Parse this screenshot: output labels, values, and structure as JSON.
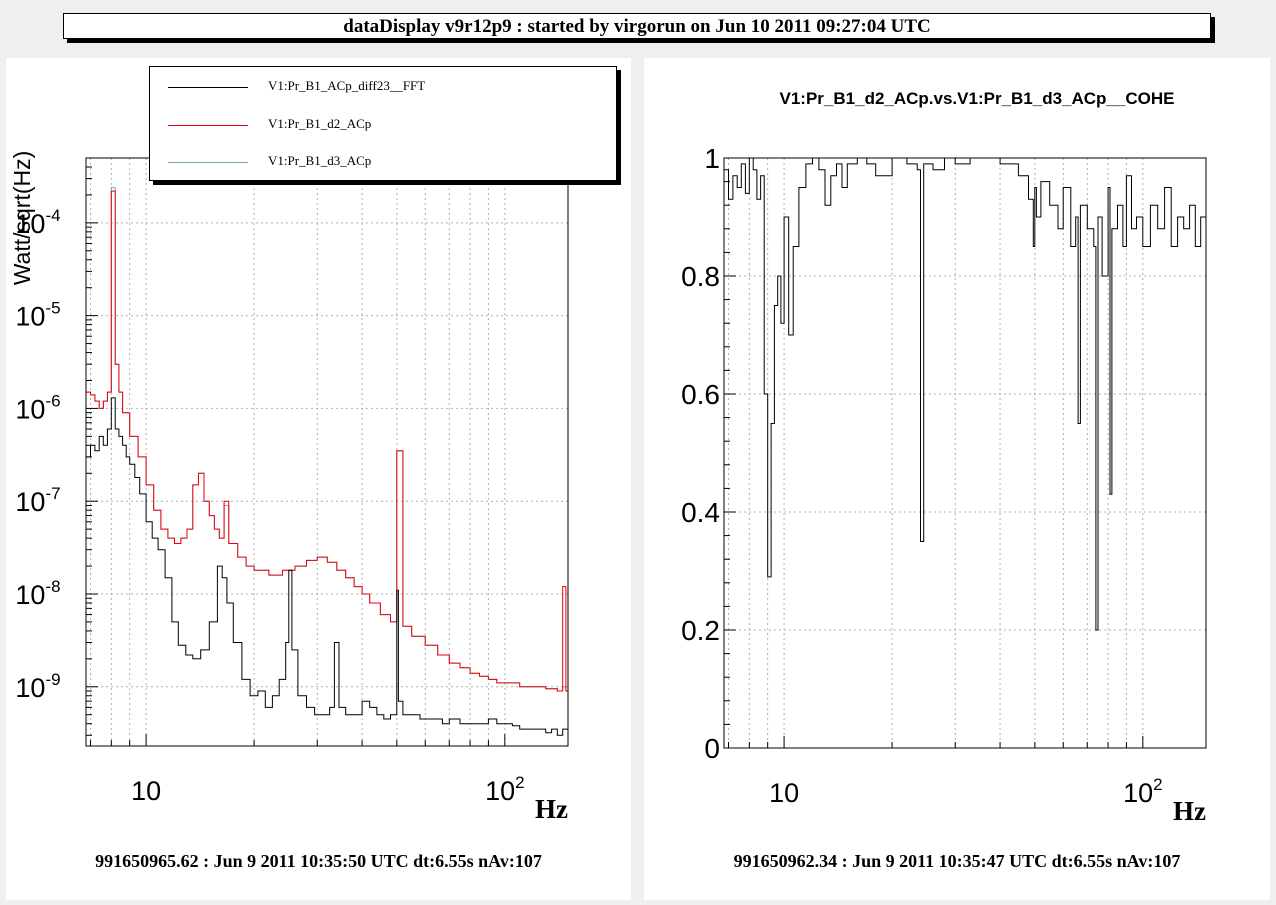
{
  "window_title": "dataDisplay v9r12p9 : started by virgorun on Jun 10 2011 09:27:04 UTC",
  "colors": {
    "fft": "#000000",
    "d2": "#e8000b",
    "d3": "#6db596",
    "grid": "#b0b0b0"
  },
  "left_panel": {
    "footer": "991650965.62 : Jun  9 2011 10:35:50 UTC dt:6.55s nAv:107",
    "chart_data": {
      "type": "line",
      "title": "",
      "xlabel": "Hz",
      "ylabel": "Watt/sqrt(Hz)",
      "xscale": "log",
      "yscale": "log",
      "xlim": [
        6.8,
        150
      ],
      "ylim": [
        2.3e-10,
        0.0005
      ],
      "grid": true,
      "legend_position": "top",
      "x_tick_labels": [
        {
          "value": 10,
          "base": "10",
          "exp": ""
        },
        {
          "value": 100,
          "base": "10",
          "exp": "2"
        }
      ],
      "y_tick_labels": [
        {
          "value": 1e-09,
          "base": "10",
          "exp": "-9"
        },
        {
          "value": 1e-08,
          "base": "10",
          "exp": "-8"
        },
        {
          "value": 1e-07,
          "base": "10",
          "exp": "-7"
        },
        {
          "value": 1e-06,
          "base": "10",
          "exp": "-6"
        },
        {
          "value": 1e-05,
          "base": "10",
          "exp": "-5"
        },
        {
          "value": 0.0001,
          "base": "10",
          "exp": "-4"
        }
      ],
      "series": [
        {
          "name": "V1:Pr_B1_ACp_diff23__FFT",
          "color": "#000000",
          "x": [
            6.8,
            7.0,
            7.2,
            7.4,
            7.6,
            7.8,
            8.0,
            8.2,
            8.4,
            8.6,
            8.8,
            9.0,
            9.3,
            9.6,
            10.0,
            10.4,
            10.8,
            11.3,
            11.8,
            12.3,
            12.9,
            13.5,
            14.2,
            15.0,
            15.8,
            16.3,
            16.8,
            17.5,
            18.5,
            19.5,
            20.5,
            21.5,
            22.5,
            23.5,
            24.5,
            25.0,
            25.5,
            26.5,
            28.0,
            29.5,
            31.0,
            32.5,
            33.5,
            34.5,
            36.0,
            38.0,
            40.0,
            42.0,
            44.0,
            46.0,
            48.0,
            49.5,
            50.0,
            50.5,
            52.0,
            55.0,
            58.0,
            61.0,
            64.0,
            67.0,
            70.0,
            75.0,
            80.0,
            85.0,
            90.0,
            95.0,
            100.0,
            105.0,
            110.0,
            115.0,
            120.0,
            125.0,
            130.0,
            135.0,
            140.0,
            145.0,
            150.0
          ],
          "y": [
            3e-07,
            4e-07,
            3.5e-07,
            5e-07,
            4e-07,
            6e-07,
            1.3e-06,
            6e-07,
            5e-07,
            4e-07,
            3e-07,
            2.5e-07,
            1.8e-07,
            1.2e-07,
            6e-08,
            4e-08,
            3e-08,
            1.5e-08,
            5e-09,
            2.8e-09,
            2.2e-09,
            2e-09,
            2.5e-09,
            5e-09,
            2e-08,
            1.5e-08,
            8e-09,
            3e-09,
            1.2e-09,
            8e-10,
            9e-10,
            6e-10,
            8e-10,
            1.2e-09,
            3e-09,
            1.8e-08,
            2.5e-09,
            8e-10,
            6e-10,
            5e-10,
            5e-10,
            6e-10,
            3e-09,
            6e-10,
            5e-10,
            5e-10,
            7e-10,
            6e-10,
            5e-10,
            4.5e-10,
            5e-10,
            5e-10,
            1.1e-08,
            7e-10,
            5e-10,
            5e-10,
            4.5e-10,
            4.5e-10,
            4.5e-10,
            4e-10,
            4.5e-10,
            4e-10,
            4e-10,
            4e-10,
            4.5e-10,
            4e-10,
            4e-10,
            3.8e-10,
            3.5e-10,
            3.5e-10,
            3.5e-10,
            3.5e-10,
            3.2e-10,
            3.5e-10,
            3e-10,
            3.5e-10,
            3.5e-10
          ]
        },
        {
          "name": "V1:Pr_B1_d2_ACp",
          "color": "#e8000b",
          "x": [
            6.8,
            7.0,
            7.2,
            7.4,
            7.6,
            7.8,
            8.0,
            8.2,
            8.4,
            8.6,
            9.0,
            9.5,
            10.0,
            10.5,
            11.0,
            11.5,
            12.0,
            12.5,
            13.0,
            13.5,
            14.0,
            14.5,
            15.0,
            15.5,
            16.0,
            16.5,
            17.0,
            18.0,
            19.0,
            20.0,
            22.0,
            24.0,
            26.0,
            28.0,
            30.0,
            32.0,
            34.0,
            36.0,
            38.0,
            40.0,
            42.0,
            45.0,
            48.0,
            50.0,
            52.0,
            55.0,
            60.0,
            65.0,
            70.0,
            75.0,
            80.0,
            85.0,
            90.0,
            95.0,
            100.0,
            110.0,
            120.0,
            130.0,
            140.0,
            145.0,
            148.0,
            150.0
          ],
          "y": [
            1.5e-06,
            1.4e-06,
            1.2e-06,
            1e-06,
            1.2e-06,
            1.5e-06,
            0.00022,
            3e-06,
            1.5e-06,
            9e-07,
            5e-07,
            3e-07,
            1.5e-07,
            8e-08,
            5e-08,
            4e-08,
            3.5e-08,
            4e-08,
            5e-08,
            1.5e-07,
            2e-07,
            1e-07,
            7e-08,
            5e-08,
            4e-08,
            1e-07,
            3.5e-08,
            2.5e-08,
            2e-08,
            1.8e-08,
            1.6e-08,
            1.8e-08,
            2e-08,
            2.3e-08,
            2.5e-08,
            2.2e-08,
            1.8e-08,
            1.5e-08,
            1.2e-08,
            1e-08,
            8e-09,
            6e-09,
            5e-09,
            3.5e-07,
            4.5e-09,
            3.5e-09,
            2.8e-09,
            2.2e-09,
            1.8e-09,
            1.6e-09,
            1.4e-09,
            1.3e-09,
            1.2e-09,
            1.1e-09,
            1.1e-09,
            1e-09,
            1e-09,
            9.5e-10,
            9e-10,
            1.2e-08,
            9e-10,
            8.5e-10
          ]
        },
        {
          "name": "V1:Pr_B1_d3_ACp",
          "color": "#6db596",
          "x": [
            6.8,
            7.0,
            7.2,
            7.4,
            7.6,
            7.8,
            8.0,
            8.2,
            8.4,
            8.6,
            9.0,
            9.5,
            10.0,
            10.5,
            11.0,
            11.5,
            12.0,
            12.5,
            13.0,
            13.5,
            14.0,
            14.5,
            15.0,
            15.5,
            16.0,
            16.5,
            17.0,
            18.0,
            19.0,
            20.0,
            22.0,
            24.0,
            26.0,
            28.0,
            30.0,
            32.0,
            34.0,
            36.0,
            38.0,
            40.0,
            42.0,
            45.0,
            48.0,
            50.0,
            52.0,
            55.0,
            60.0,
            65.0,
            70.0,
            75.0,
            80.0,
            85.0,
            90.0,
            95.0,
            100.0,
            110.0,
            120.0,
            130.0,
            140.0,
            145.0,
            148.0,
            150.0
          ],
          "y": [
            1.5e-06,
            1.4e-06,
            1.2e-06,
            1e-06,
            1.2e-06,
            1.5e-06,
            0.00024,
            3e-06,
            1.5e-06,
            9e-07,
            5e-07,
            3e-07,
            1.5e-07,
            8e-08,
            5e-08,
            4e-08,
            3.5e-08,
            4e-08,
            5e-08,
            1.5e-07,
            2e-07,
            1e-07,
            7e-08,
            5e-08,
            4e-08,
            9e-08,
            3.5e-08,
            2.5e-08,
            2e-08,
            1.8e-08,
            1.6e-08,
            1.8e-08,
            2e-08,
            2.3e-08,
            2.5e-08,
            2.2e-08,
            1.8e-08,
            1.5e-08,
            1.2e-08,
            1e-08,
            8e-09,
            6e-09,
            5e-09,
            3.5e-07,
            4.5e-09,
            3.5e-09,
            2.8e-09,
            2.2e-09,
            1.8e-09,
            1.6e-09,
            1.4e-09,
            1.3e-09,
            1.2e-09,
            1.1e-09,
            1.1e-09,
            1e-09,
            1e-09,
            9.5e-10,
            9e-10,
            1e-09,
            9e-10,
            8.5e-10
          ]
        }
      ]
    }
  },
  "right_panel": {
    "footer": "991650962.34 : Jun  9 2011 10:35:47 UTC dt:6.55s nAv:107",
    "chart_data": {
      "type": "line",
      "title": "V1:Pr_B1_d2_ACp.vs.V1:Pr_B1_d3_ACp__COHE",
      "xlabel": "Hz",
      "ylabel": "",
      "xscale": "log",
      "yscale": "linear",
      "xlim": [
        6.8,
        150
      ],
      "ylim": [
        0,
        1
      ],
      "grid": true,
      "x_tick_labels": [
        {
          "value": 10,
          "base": "10",
          "exp": ""
        },
        {
          "value": 100,
          "base": "10",
          "exp": "2"
        }
      ],
      "y_tick_labels": [
        {
          "value": 0,
          "label": "0"
        },
        {
          "value": 0.2,
          "label": "0.2"
        },
        {
          "value": 0.4,
          "label": "0.4"
        },
        {
          "value": 0.6,
          "label": "0.6"
        },
        {
          "value": 0.8,
          "label": "0.8"
        },
        {
          "value": 1,
          "label": "1"
        }
      ],
      "series": [
        {
          "name": "",
          "color": "#000000",
          "x": [
            6.8,
            7.0,
            7.2,
            7.4,
            7.6,
            7.8,
            8.0,
            8.2,
            8.4,
            8.6,
            8.8,
            9.0,
            9.2,
            9.4,
            9.6,
            9.8,
            10.0,
            10.3,
            10.6,
            11.0,
            11.5,
            12.0,
            12.5,
            13.0,
            13.5,
            14.0,
            14.5,
            15.0,
            16.0,
            17.0,
            18.0,
            20.0,
            22.0,
            23.5,
            24.0,
            24.5,
            26.0,
            28.0,
            30.0,
            33.0,
            36.0,
            40.0,
            45.0,
            48.0,
            49.5,
            50.0,
            50.5,
            52.0,
            55.0,
            58.0,
            60.0,
            63.0,
            65.0,
            66.0,
            67.0,
            70.0,
            73.0,
            74.0,
            75.0,
            77.0,
            80.0,
            81.0,
            82.0,
            85.0,
            88.0,
            90.0,
            93.0,
            96.0,
            100.0,
            105.0,
            110.0,
            115.0,
            120.0,
            125.0,
            130.0,
            135.0,
            140.0,
            145.0,
            150.0
          ],
          "y": [
            0.98,
            0.93,
            0.97,
            0.95,
            0.99,
            0.94,
            1.0,
            0.98,
            0.93,
            0.97,
            0.6,
            0.29,
            0.55,
            0.75,
            0.8,
            0.72,
            0.9,
            0.7,
            0.85,
            0.95,
            0.99,
            1.0,
            0.98,
            0.92,
            0.97,
            0.99,
            0.95,
            0.99,
            1.0,
            0.99,
            0.97,
            1.0,
            0.99,
            0.98,
            0.35,
            0.99,
            0.98,
            1.0,
            0.99,
            1.0,
            1.0,
            0.99,
            0.97,
            0.93,
            0.85,
            0.95,
            0.9,
            0.96,
            0.92,
            0.88,
            0.95,
            0.85,
            0.9,
            0.55,
            0.92,
            0.88,
            0.85,
            0.2,
            0.9,
            0.8,
            0.95,
            0.43,
            0.88,
            0.92,
            0.85,
            0.97,
            0.88,
            0.9,
            0.85,
            0.92,
            0.88,
            0.95,
            0.85,
            0.9,
            0.88,
            0.92,
            0.85,
            0.9,
            0.8
          ]
        }
      ]
    }
  }
}
